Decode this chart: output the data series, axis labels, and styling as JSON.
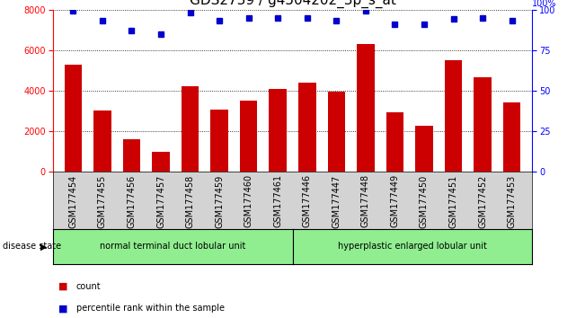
{
  "title": "GDS2739 / g4504202_3p_s_at",
  "samples": [
    "GSM177454",
    "GSM177455",
    "GSM177456",
    "GSM177457",
    "GSM177458",
    "GSM177459",
    "GSM177460",
    "GSM177461",
    "GSM177446",
    "GSM177447",
    "GSM177448",
    "GSM177449",
    "GSM177450",
    "GSM177451",
    "GSM177452",
    "GSM177453"
  ],
  "counts": [
    5300,
    3000,
    1600,
    1000,
    4200,
    3050,
    3500,
    4100,
    4400,
    3950,
    6300,
    2950,
    2250,
    5500,
    4650,
    3400
  ],
  "percentiles": [
    99,
    93,
    87,
    85,
    98,
    93,
    95,
    95,
    95,
    93,
    99,
    91,
    91,
    94,
    95,
    93
  ],
  "group1_label": "normal terminal duct lobular unit",
  "group2_label": "hyperplastic enlarged lobular unit",
  "group1_count": 8,
  "group2_count": 8,
  "bar_color": "#cc0000",
  "dot_color": "#0000cc",
  "ylim_left": [
    0,
    8000
  ],
  "ylim_right": [
    0,
    100
  ],
  "yticks_left": [
    0,
    2000,
    4000,
    6000,
    8000
  ],
  "yticks_right": [
    0,
    25,
    50,
    75,
    100
  ],
  "legend_count_label": "count",
  "legend_pct_label": "percentile rank within the sample",
  "disease_state_label": "disease state",
  "group1_color": "#90ee90",
  "group2_color": "#90ee90",
  "xtick_bg_color": "#d3d3d3",
  "title_fontsize": 11,
  "tick_fontsize": 7,
  "label_fontsize": 7
}
